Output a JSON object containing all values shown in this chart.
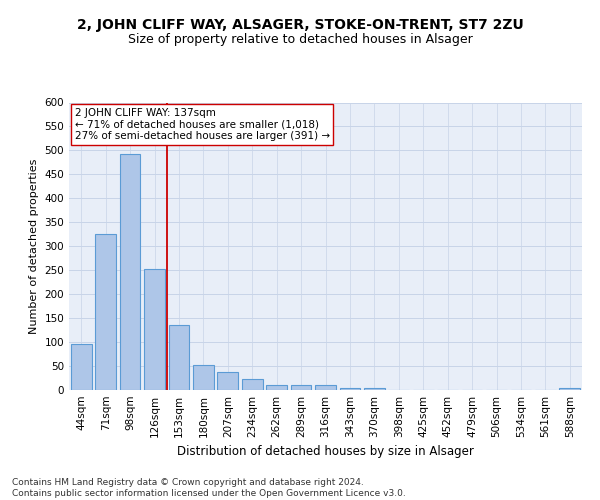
{
  "title1": "2, JOHN CLIFF WAY, ALSAGER, STOKE-ON-TRENT, ST7 2ZU",
  "title2": "Size of property relative to detached houses in Alsager",
  "xlabel": "Distribution of detached houses by size in Alsager",
  "ylabel": "Number of detached properties",
  "categories": [
    "44sqm",
    "71sqm",
    "98sqm",
    "126sqm",
    "153sqm",
    "180sqm",
    "207sqm",
    "234sqm",
    "262sqm",
    "289sqm",
    "316sqm",
    "343sqm",
    "370sqm",
    "398sqm",
    "425sqm",
    "452sqm",
    "479sqm",
    "506sqm",
    "534sqm",
    "561sqm",
    "588sqm"
  ],
  "values": [
    97,
    325,
    493,
    252,
    135,
    53,
    37,
    23,
    10,
    10,
    10,
    5,
    5,
    0,
    0,
    0,
    0,
    0,
    0,
    0,
    5
  ],
  "bar_color": "#aec6e8",
  "bar_edgecolor": "#5b9bd5",
  "bar_linewidth": 0.8,
  "vline_color": "#cc0000",
  "annotation_text": "2 JOHN CLIFF WAY: 137sqm\n← 71% of detached houses are smaller (1,018)\n27% of semi-detached houses are larger (391) →",
  "annotation_box_color": "white",
  "annotation_box_edgecolor": "#cc0000",
  "annotation_fontsize": 7.5,
  "grid_color": "#c8d4e8",
  "bg_color": "#e8eef8",
  "ylim": [
    0,
    600
  ],
  "yticks": [
    0,
    50,
    100,
    150,
    200,
    250,
    300,
    350,
    400,
    450,
    500,
    550,
    600
  ],
  "footer": "Contains HM Land Registry data © Crown copyright and database right 2024.\nContains public sector information licensed under the Open Government Licence v3.0.",
  "title1_fontsize": 10,
  "title2_fontsize": 9,
  "xlabel_fontsize": 8.5,
  "ylabel_fontsize": 8,
  "tick_fontsize": 7.5,
  "footer_fontsize": 6.5
}
